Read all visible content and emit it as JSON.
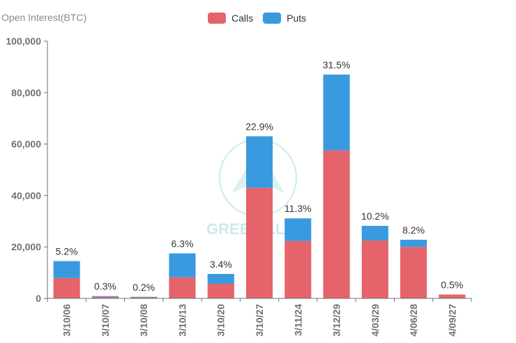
{
  "colors": {
    "calls": "#e5636a",
    "puts": "#3a9ae0",
    "axis": "#6e7079",
    "text": "#333333",
    "watermark": "#bfe6e4"
  },
  "watermark_text": "GREEKS.LIVE",
  "chart_data": {
    "type": "bar",
    "stacked": true,
    "title": "",
    "ylabel": "Open Interest(BTC)",
    "xlabel": "",
    "ylim": [
      0,
      100000
    ],
    "yticks": [
      0,
      20000,
      40000,
      60000,
      80000,
      100000
    ],
    "ytick_labels": [
      "0",
      "20,000",
      "40,000",
      "60,000",
      "80,000",
      "100,000"
    ],
    "categories": [
      "3/10/06",
      "3/10/07",
      "3/10/08",
      "3/10/13",
      "3/10/20",
      "3/10/27",
      "3/11/24",
      "3/12/29",
      "4/03/29",
      "4/06/28",
      "4/09/27"
    ],
    "series": [
      {
        "name": "Calls",
        "values": [
          7900,
          600,
          400,
          8200,
          5700,
          43000,
          22300,
          57500,
          22500,
          20000,
          1500
        ]
      },
      {
        "name": "Puts",
        "values": [
          6600,
          300,
          200,
          9300,
          3800,
          20000,
          8800,
          29500,
          5700,
          2800,
          0
        ]
      }
    ],
    "percent_labels": [
      "5.2%",
      "0.3%",
      "0.2%",
      "6.3%",
      "3.4%",
      "22.9%",
      "11.3%",
      "31.5%",
      "10.2%",
      "8.2%",
      "0.5%"
    ],
    "legend": [
      {
        "name": "Calls"
      },
      {
        "name": "Puts"
      }
    ],
    "legend_position": "top-center",
    "grid": false
  }
}
